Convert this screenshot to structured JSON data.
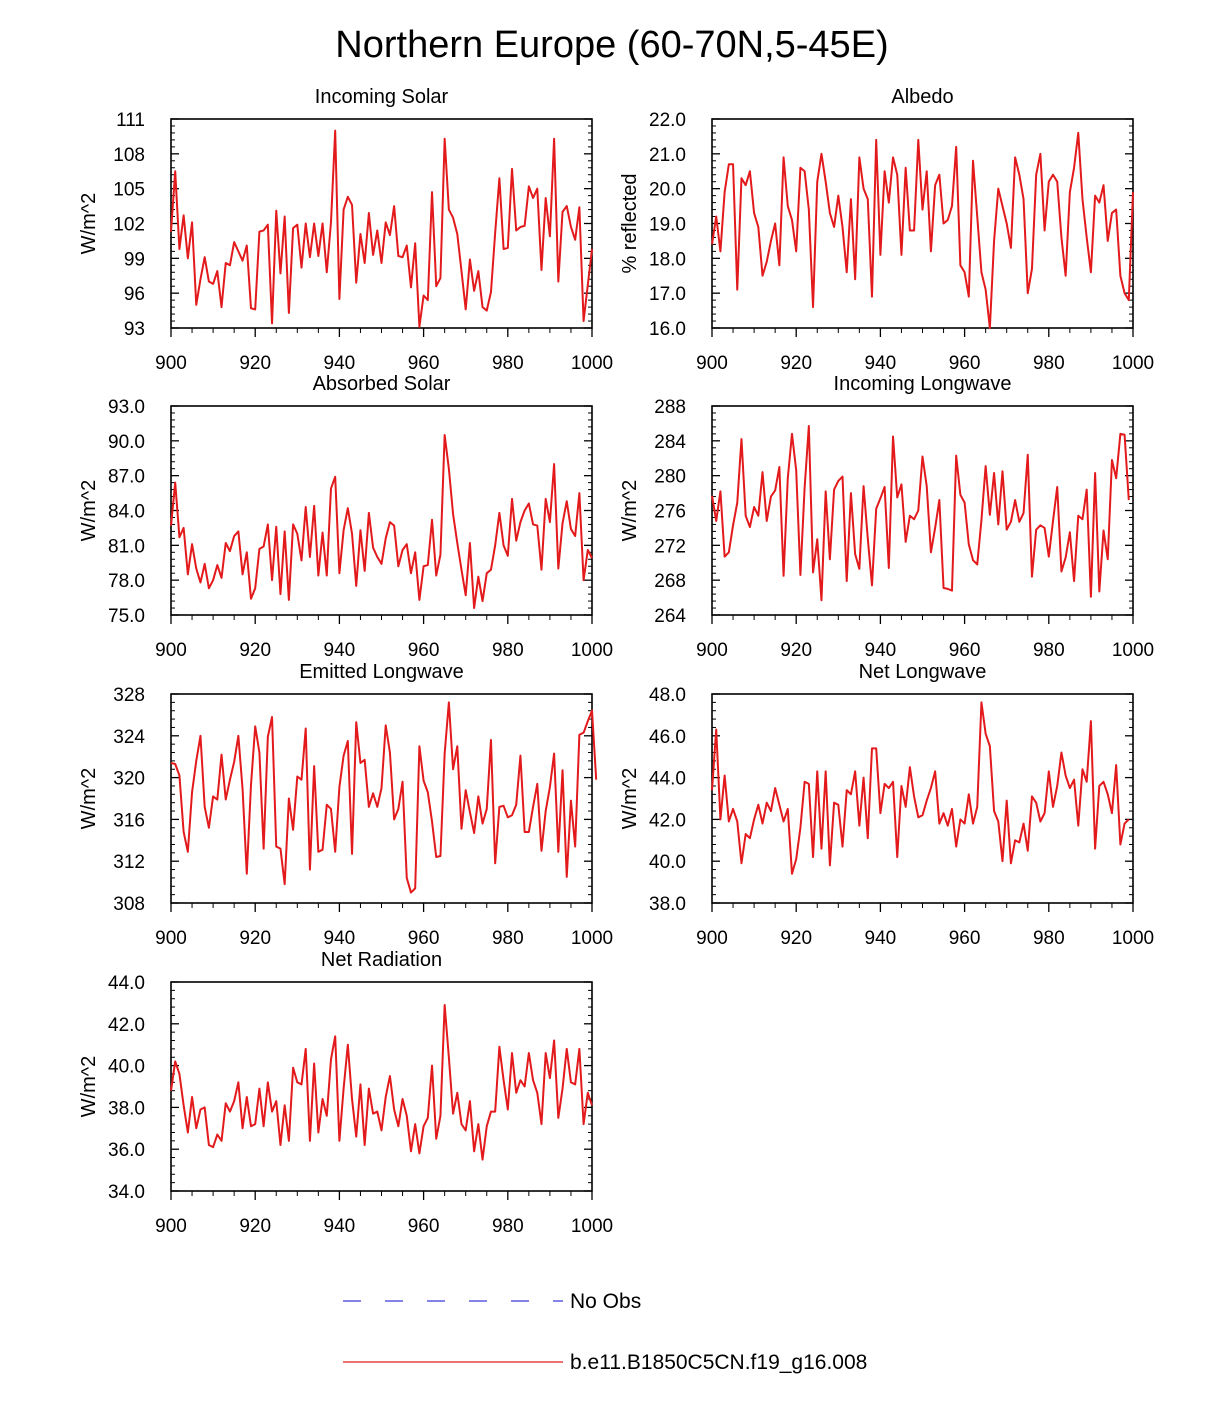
{
  "figure_title": "Northern Europe (60-70N,5-45E)",
  "legend": [
    {
      "label": "No Obs",
      "color": "#3b3bdb",
      "style": "dashed"
    },
    {
      "label": "b.e11.B1850C5CN.f19_g16.008",
      "color": "#e31a1c",
      "style": "solid"
    }
  ],
  "series_color": "#e31a1c",
  "chart_data": [
    {
      "type": "line",
      "title": "Incoming Solar",
      "xlabel": "",
      "ylabel": "W/m^2",
      "xlim": [
        900,
        1000
      ],
      "ylim": [
        93,
        111
      ],
      "yticks": [
        93,
        96,
        99,
        102,
        105,
        108,
        111
      ],
      "ytick_labels": [
        "93",
        "96",
        "99",
        "102",
        "105",
        "108",
        "111"
      ],
      "xticks": [
        900,
        920,
        940,
        960,
        980,
        1000
      ],
      "xtick_labels": [
        "900",
        "920",
        "940",
        "960",
        "980",
        "1000"
      ],
      "series": [
        {
          "name": "b.e11.B1850C5CN.f19_g16.008",
          "x_start": 900,
          "x_step": 1,
          "values": [
            101.3,
            106.5,
            99.8,
            102.7,
            99.0,
            102.1,
            95.0,
            97.2,
            99.1,
            97.0,
            96.8,
            97.9,
            94.8,
            98.6,
            98.4,
            100.4,
            99.6,
            98.8,
            100.1,
            94.7,
            94.6,
            101.3,
            101.4,
            101.9,
            93.4,
            103.1,
            97.7,
            102.6,
            94.3,
            101.6,
            101.9,
            98.2,
            102.0,
            99.1,
            102.0,
            99.2,
            102.0,
            97.8,
            102.1,
            110.0,
            95.5,
            103.2,
            104.3,
            103.6,
            96.9,
            101.1,
            98.6,
            102.9,
            99.3,
            101.4,
            98.6,
            102.1,
            101.0,
            103.5,
            99.2,
            99.1,
            100.1,
            96.5,
            100.3,
            93.1,
            95.8,
            95.4,
            104.7,
            96.6,
            97.3,
            109.3,
            103.2,
            102.5,
            101.1,
            97.9,
            94.6,
            98.9,
            96.2,
            97.9,
            94.8,
            94.5,
            96.1,
            101.2,
            105.9,
            99.8,
            99.9,
            106.7,
            101.4,
            101.7,
            101.8,
            105.2,
            104.2,
            105.0,
            98.0,
            104.2,
            100.9,
            109.3,
            97.0,
            103.0,
            103.5,
            101.7,
            100.6,
            103.4,
            93.6,
            96.7,
            99.8
          ]
        }
      ]
    },
    {
      "type": "line",
      "title": "Albedo",
      "xlabel": "",
      "ylabel": "% reflected",
      "xlim": [
        900,
        1000
      ],
      "ylim": [
        16.0,
        22.0
      ],
      "yticks": [
        16,
        17,
        18,
        19,
        20,
        21,
        22
      ],
      "ytick_labels": [
        "16.0",
        "17.0",
        "18.0",
        "19.0",
        "20.0",
        "21.0",
        "22.0"
      ],
      "xticks": [
        900,
        920,
        940,
        960,
        980,
        1000
      ],
      "xtick_labels": [
        "900",
        "920",
        "940",
        "960",
        "980",
        "1000"
      ],
      "series": [
        {
          "name": "b.e11.B1850C5CN.f19_g16.008",
          "x_start": 900,
          "x_step": 1,
          "values": [
            18.4,
            19.2,
            18.2,
            19.9,
            20.7,
            20.7,
            17.1,
            20.3,
            20.1,
            20.5,
            19.3,
            18.9,
            17.5,
            17.9,
            18.5,
            19.0,
            17.8,
            20.9,
            19.5,
            19.1,
            18.2,
            20.6,
            20.5,
            19.4,
            16.6,
            20.2,
            21.0,
            20.2,
            19.3,
            18.9,
            19.8,
            18.9,
            17.6,
            19.7,
            17.4,
            20.9,
            20.0,
            19.7,
            16.9,
            21.4,
            18.1,
            20.5,
            19.6,
            20.9,
            20.4,
            18.1,
            20.6,
            18.8,
            18.8,
            21.4,
            19.4,
            20.5,
            18.2,
            20.1,
            20.4,
            19.0,
            19.1,
            19.5,
            21.2,
            17.8,
            17.6,
            16.9,
            20.8,
            19.2,
            17.6,
            17.1,
            16.0,
            18.5,
            20.0,
            19.5,
            19.0,
            18.3,
            20.9,
            20.4,
            19.7,
            17.0,
            17.7,
            20.4,
            21.0,
            18.8,
            20.2,
            20.4,
            20.2,
            18.6,
            17.5,
            19.9,
            20.6,
            21.6,
            19.7,
            18.6,
            17.6,
            19.8,
            19.6,
            20.1,
            18.5,
            19.3,
            19.4,
            17.5,
            17.0,
            16.8,
            19.9
          ]
        }
      ]
    },
    {
      "type": "line",
      "title": "Absorbed Solar",
      "xlabel": "",
      "ylabel": "W/m^2",
      "xlim": [
        900,
        1000
      ],
      "ylim": [
        75.0,
        93.0
      ],
      "yticks": [
        75,
        78,
        81,
        84,
        87,
        90,
        93
      ],
      "ytick_labels": [
        "75.0",
        "78.0",
        "81.0",
        "84.0",
        "87.0",
        "90.0",
        "93.0"
      ],
      "xticks": [
        900,
        920,
        940,
        960,
        980,
        1000
      ],
      "xtick_labels": [
        "900",
        "920",
        "940",
        "960",
        "980",
        "1000"
      ],
      "series": [
        {
          "name": "b.e11.B1850C5CN.f19_g16.008",
          "x_start": 900,
          "x_step": 1,
          "values": [
            82.7,
            86.4,
            81.7,
            82.5,
            78.5,
            81.1,
            79.0,
            77.8,
            79.4,
            77.3,
            78.0,
            79.3,
            78.2,
            81.2,
            80.5,
            81.8,
            82.2,
            78.5,
            80.4,
            76.4,
            77.3,
            80.7,
            80.9,
            82.8,
            78.0,
            82.6,
            76.8,
            82.2,
            76.3,
            82.8,
            82.0,
            79.7,
            84.3,
            80.0,
            84.4,
            78.4,
            82.1,
            78.4,
            85.9,
            86.9,
            78.6,
            82.3,
            84.2,
            82.0,
            77.5,
            82.3,
            78.8,
            83.8,
            80.8,
            80.0,
            79.4,
            81.6,
            83.0,
            82.7,
            79.2,
            80.6,
            81.1,
            78.6,
            80.4,
            76.3,
            79.2,
            79.3,
            83.2,
            78.4,
            80.2,
            90.5,
            87.6,
            83.7,
            81.2,
            78.9,
            76.7,
            81.2,
            75.6,
            78.3,
            76.2,
            78.6,
            78.9,
            81.0,
            83.8,
            81.0,
            80.1,
            85.0,
            81.4,
            83.0,
            84.0,
            84.6,
            82.8,
            82.7,
            78.9,
            85.0,
            83.0,
            88.0,
            79.0,
            82.9,
            84.8,
            82.4,
            81.8,
            85.5,
            78.0,
            80.6,
            79.9
          ]
        }
      ]
    },
    {
      "type": "line",
      "title": "Incoming Longwave",
      "xlabel": "",
      "ylabel": "W/m^2",
      "xlim": [
        900,
        1000
      ],
      "ylim": [
        264,
        288
      ],
      "yticks": [
        264,
        268,
        272,
        276,
        280,
        284,
        288
      ],
      "ytick_labels": [
        "264",
        "268",
        "272",
        "276",
        "280",
        "284",
        "288"
      ],
      "xticks": [
        900,
        920,
        940,
        960,
        980,
        1000
      ],
      "xtick_labels": [
        "900",
        "920",
        "940",
        "960",
        "980",
        "1000"
      ],
      "series": [
        {
          "name": "b.e11.B1850C5CN.f19_g16.008",
          "x_start": 900,
          "x_step": 1,
          "values": [
            277.7,
            274.8,
            278.2,
            270.7,
            271.2,
            274.3,
            276.9,
            284.2,
            275.4,
            274.1,
            276.4,
            275.4,
            280.4,
            274.8,
            277.6,
            278.3,
            281.0,
            268.5,
            279.7,
            284.8,
            280.6,
            268.6,
            278.6,
            285.7,
            268.9,
            272.7,
            265.7,
            278.2,
            270.4,
            278.4,
            279.4,
            279.9,
            267.9,
            278.0,
            271.0,
            269.3,
            278.8,
            272.8,
            267.4,
            276.2,
            277.4,
            278.7,
            269.4,
            284.5,
            277.5,
            279.0,
            272.4,
            275.4,
            275.0,
            276.0,
            282.2,
            278.8,
            271.2,
            274.0,
            277.2,
            267.1,
            267.0,
            266.8,
            282.3,
            277.8,
            276.9,
            272.1,
            270.3,
            269.8,
            274.9,
            281.1,
            275.5,
            280.3,
            274.4,
            280.5,
            273.8,
            274.7,
            277.2,
            274.7,
            275.7,
            282.4,
            268.4,
            273.8,
            274.3,
            274.0,
            270.7,
            274.8,
            278.7,
            269.0,
            270.6,
            273.5,
            267.9,
            275.4,
            275.0,
            278.4,
            266.1,
            280.3,
            266.7,
            273.7,
            270.4,
            281.8,
            279.7,
            284.8,
            284.7,
            277.2
          ]
        }
      ]
    },
    {
      "type": "line",
      "title": "Emitted Longwave",
      "xlabel": "",
      "ylabel": "W/m^2",
      "xlim": [
        900,
        1000
      ],
      "ylim": [
        308,
        328
      ],
      "yticks": [
        308,
        312,
        316,
        320,
        324,
        328
      ],
      "ytick_labels": [
        "308",
        "312",
        "316",
        "320",
        "324",
        "328"
      ],
      "xticks": [
        900,
        920,
        940,
        960,
        980,
        1000
      ],
      "xtick_labels": [
        "900",
        "920",
        "940",
        "960",
        "980",
        "1000"
      ],
      "series": [
        {
          "name": "b.e11.B1850C5CN.f19_g16.008",
          "x_start": 900,
          "x_step": 1,
          "values": [
            321.4,
            321.3,
            320.2,
            314.8,
            312.9,
            318.6,
            321.6,
            324.0,
            317.2,
            315.2,
            318.2,
            317.9,
            322.2,
            317.9,
            319.8,
            321.5,
            324.0,
            318.9,
            310.8,
            319.3,
            324.9,
            322.4,
            313.2,
            323.9,
            325.8,
            313.4,
            313.2,
            309.8,
            318.0,
            315.0,
            320.1,
            319.8,
            324.7,
            311.2,
            321.1,
            312.9,
            313.1,
            317.4,
            317.0,
            312.9,
            319.1,
            322.1,
            323.5,
            312.7,
            325.3,
            321.4,
            321.7,
            317.2,
            318.5,
            317.2,
            319.0,
            325.0,
            322.4,
            316.0,
            317.0,
            319.6,
            310.4,
            309.0,
            309.4,
            323.0,
            319.7,
            318.6,
            315.8,
            312.4,
            312.5,
            322.3,
            327.2,
            320.8,
            323.0,
            315.1,
            318.8,
            316.7,
            314.7,
            318.2,
            315.6,
            317.0,
            323.6,
            311.8,
            317.2,
            317.3,
            316.2,
            316.4,
            317.4,
            322.1,
            314.8,
            314.8,
            317.2,
            319.4,
            313.0,
            316.8,
            319.1,
            322.3,
            312.9,
            320.7,
            310.5,
            317.8,
            313.4,
            324.1,
            324.3,
            325.4,
            326.4,
            319.8
          ]
        }
      ]
    },
    {
      "type": "line",
      "title": "Net Longwave",
      "xlabel": "",
      "ylabel": "W/m^2",
      "xlim": [
        900,
        1000
      ],
      "ylim": [
        38.0,
        48.0
      ],
      "yticks": [
        38,
        40,
        42,
        44,
        46,
        48
      ],
      "ytick_labels": [
        "38.0",
        "40.0",
        "42.0",
        "44.0",
        "46.0",
        "48.0"
      ],
      "xticks": [
        900,
        920,
        940,
        960,
        980,
        1000
      ],
      "xtick_labels": [
        "900",
        "920",
        "940",
        "960",
        "980",
        "1000"
      ],
      "series": [
        {
          "name": "b.e11.B1850C5CN.f19_g16.008",
          "x_start": 900,
          "x_step": 1,
          "values": [
            43.4,
            46.3,
            42.0,
            44.1,
            41.9,
            42.5,
            41.9,
            39.9,
            41.3,
            41.1,
            42.0,
            42.7,
            41.8,
            42.8,
            42.4,
            43.5,
            42.7,
            41.9,
            42.5,
            39.4,
            40.1,
            41.6,
            43.8,
            43.7,
            40.2,
            44.3,
            40.6,
            44.3,
            39.8,
            42.8,
            42.7,
            40.7,
            43.4,
            43.2,
            44.3,
            41.7,
            44.0,
            41.1,
            45.4,
            45.4,
            42.3,
            43.7,
            43.5,
            43.8,
            40.2,
            43.6,
            42.6,
            44.5,
            43.1,
            42.1,
            42.2,
            42.9,
            43.5,
            44.3,
            41.8,
            42.3,
            41.7,
            42.5,
            40.7,
            42.0,
            41.8,
            43.2,
            41.8,
            42.6,
            47.6,
            46.1,
            45.5,
            42.4,
            41.9,
            40.0,
            42.9,
            39.9,
            41.0,
            40.9,
            41.8,
            40.5,
            43.1,
            42.8,
            41.9,
            42.3,
            44.3,
            42.6,
            43.6,
            45.2,
            44.1,
            43.5,
            43.9,
            41.7,
            44.4,
            43.8,
            46.7,
            40.6,
            43.6,
            43.8,
            43.2,
            42.3,
            44.6,
            40.8,
            41.8,
            42.0
          ]
        }
      ]
    },
    {
      "type": "line",
      "title": "Net Radiation",
      "xlabel": "",
      "ylabel": "W/m^2",
      "xlim": [
        900,
        1000
      ],
      "ylim": [
        34.0,
        44.0
      ],
      "yticks": [
        34,
        36,
        38,
        40,
        42,
        44
      ],
      "ytick_labels": [
        "34.0",
        "36.0",
        "38.0",
        "40.0",
        "42.0",
        "44.0"
      ],
      "xticks": [
        900,
        920,
        940,
        960,
        980,
        1000
      ],
      "xtick_labels": [
        "900",
        "920",
        "940",
        "960",
        "980",
        "1000"
      ],
      "series": [
        {
          "name": "b.e11.B1850C5CN.f19_g16.008",
          "x_start": 900,
          "x_step": 1,
          "values": [
            38.8,
            40.2,
            39.6,
            38.1,
            36.8,
            38.5,
            37.0,
            37.9,
            38.0,
            36.2,
            36.1,
            36.7,
            36.4,
            38.2,
            37.8,
            38.3,
            39.2,
            37.0,
            38.5,
            37.1,
            37.2,
            38.9,
            37.1,
            39.2,
            37.8,
            38.3,
            36.2,
            38.1,
            36.4,
            39.9,
            39.2,
            39.1,
            40.8,
            36.4,
            40.1,
            36.8,
            38.4,
            37.6,
            40.3,
            41.4,
            36.4,
            38.9,
            41.0,
            38.4,
            36.6,
            39.1,
            36.2,
            38.9,
            37.7,
            37.8,
            36.9,
            38.5,
            39.5,
            37.9,
            37.1,
            38.4,
            37.6,
            35.9,
            37.2,
            35.8,
            37.1,
            37.5,
            40.0,
            36.5,
            37.6,
            42.9,
            40.4,
            37.7,
            38.7,
            37.2,
            36.9,
            38.3,
            35.9,
            37.2,
            35.5,
            37.1,
            37.8,
            37.8,
            40.9,
            39.3,
            37.9,
            40.6,
            38.7,
            39.3,
            39.0,
            40.6,
            39.3,
            38.7,
            37.2,
            40.6,
            39.4,
            41.2,
            37.5,
            38.9,
            40.8,
            39.2,
            39.1,
            40.8,
            37.2,
            38.7,
            38.1
          ]
        }
      ]
    }
  ]
}
